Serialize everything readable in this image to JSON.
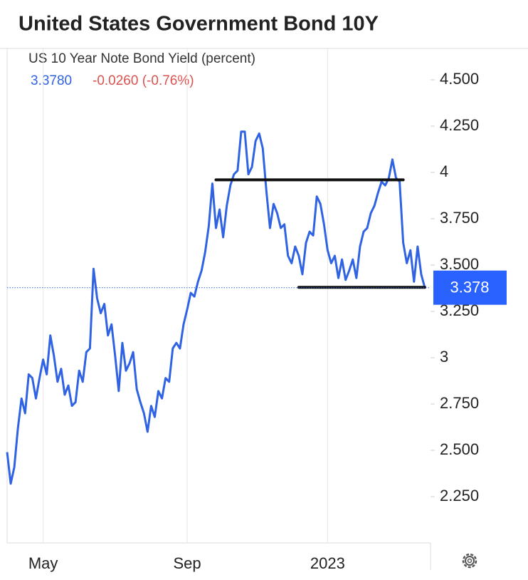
{
  "chart_data": {
    "type": "line",
    "title": "United States Government Bond 10Y",
    "quote": {
      "price": "3.3780",
      "change": "-0.0260 (-0.76%)"
    },
    "last_label": "3.378",
    "categories": [
      null,
      null,
      null,
      null,
      null,
      null,
      null,
      null,
      null,
      null,
      "May",
      null,
      null,
      null,
      null,
      null,
      null,
      null,
      null,
      null,
      null,
      null,
      null,
      null,
      null,
      null,
      null,
      null,
      null,
      null,
      null,
      null,
      null,
      null,
      null,
      null,
      null,
      null,
      null,
      null,
      null,
      null,
      null,
      null,
      null,
      null,
      null,
      null,
      null,
      null,
      "Sep",
      null,
      null,
      null,
      null,
      null,
      null,
      null,
      null,
      null,
      null,
      null,
      null,
      null,
      null,
      null,
      null,
      null,
      null,
      null,
      null,
      null,
      null,
      null,
      null,
      null,
      null,
      null,
      null,
      null,
      null,
      null,
      null,
      null,
      null,
      null,
      null,
      null,
      null,
      "2023",
      null,
      null,
      null,
      null,
      null,
      null,
      null,
      null,
      null,
      null,
      null,
      null,
      null,
      null,
      null,
      null,
      null,
      null,
      null,
      null,
      null,
      null,
      null,
      null,
      null,
      null,
      null
    ],
    "series": [
      {
        "name": "US 10 Year Note Bond Yield (percent)",
        "color": "#2f63e3",
        "values": [
          2.49,
          2.32,
          2.41,
          2.62,
          2.78,
          2.7,
          2.91,
          2.89,
          2.78,
          2.89,
          2.99,
          2.91,
          3.12,
          3.01,
          2.87,
          2.94,
          2.8,
          2.85,
          2.74,
          2.76,
          2.93,
          2.87,
          3.03,
          3.05,
          3.48,
          3.32,
          3.24,
          3.29,
          3.12,
          3.18,
          3.01,
          2.82,
          3.08,
          2.93,
          2.97,
          3.03,
          2.83,
          2.76,
          2.7,
          2.6,
          2.74,
          2.68,
          2.82,
          2.78,
          2.89,
          2.87,
          3.05,
          3.08,
          3.05,
          3.18,
          3.26,
          3.35,
          3.33,
          3.41,
          3.47,
          3.57,
          3.71,
          3.94,
          3.7,
          3.8,
          3.65,
          3.82,
          3.93,
          3.99,
          4.01,
          4.22,
          4.22,
          3.99,
          4.03,
          4.17,
          4.21,
          4.13,
          3.9,
          3.7,
          3.83,
          3.78,
          3.7,
          3.72,
          3.55,
          3.51,
          3.6,
          3.55,
          3.45,
          3.62,
          3.68,
          3.66,
          3.87,
          3.83,
          3.72,
          3.58,
          3.51,
          3.55,
          3.43,
          3.53,
          3.42,
          3.47,
          3.53,
          3.43,
          3.6,
          3.68,
          3.7,
          3.78,
          3.82,
          3.89,
          3.95,
          3.93,
          3.97,
          4.07,
          3.97,
          3.95,
          3.62,
          3.51,
          3.58,
          3.41,
          3.6,
          3.45,
          3.378
        ]
      }
    ],
    "lines": [
      {
        "from": 58,
        "to": 110,
        "value": 3.96
      },
      {
        "from": 81,
        "to": 116,
        "value": 3.38
      }
    ],
    "ylim": [
      2.0,
      4.7
    ],
    "yticks": [
      {
        "value": 2.25,
        "label": "2.250"
      },
      {
        "value": 2.5,
        "label": "2.500"
      },
      {
        "value": 2.75,
        "label": "2.750"
      },
      3,
      {
        "value": 3.25,
        "label": "3.250"
      },
      {
        "value": 3.5,
        "label": "3.500"
      },
      {
        "value": 3.75,
        "label": "3.750"
      },
      4,
      {
        "value": 4.25,
        "label": "4.250"
      },
      {
        "value": 4.5,
        "label": "4.500"
      }
    ],
    "grid": true
  }
}
